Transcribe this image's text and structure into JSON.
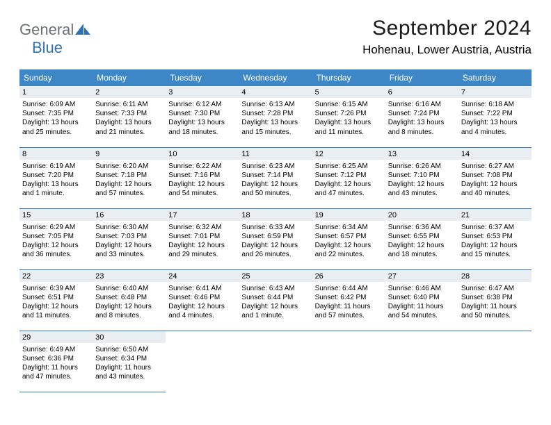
{
  "logo": {
    "part1": "General",
    "part2": "Blue"
  },
  "title": "September 2024",
  "location": "Hohenau, Lower Austria, Austria",
  "header_bg": "#3d87c7",
  "daynum_bg": "#e9eef2",
  "border_color": "#2f71b3",
  "days": [
    "Sunday",
    "Monday",
    "Tuesday",
    "Wednesday",
    "Thursday",
    "Friday",
    "Saturday"
  ],
  "weeks": [
    [
      {
        "n": "1",
        "sunrise": "6:09 AM",
        "sunset": "7:35 PM",
        "dayl": "13 hours and 25 minutes."
      },
      {
        "n": "2",
        "sunrise": "6:11 AM",
        "sunset": "7:33 PM",
        "dayl": "13 hours and 21 minutes."
      },
      {
        "n": "3",
        "sunrise": "6:12 AM",
        "sunset": "7:30 PM",
        "dayl": "13 hours and 18 minutes."
      },
      {
        "n": "4",
        "sunrise": "6:13 AM",
        "sunset": "7:28 PM",
        "dayl": "13 hours and 15 minutes."
      },
      {
        "n": "5",
        "sunrise": "6:15 AM",
        "sunset": "7:26 PM",
        "dayl": "13 hours and 11 minutes."
      },
      {
        "n": "6",
        "sunrise": "6:16 AM",
        "sunset": "7:24 PM",
        "dayl": "13 hours and 8 minutes."
      },
      {
        "n": "7",
        "sunrise": "6:18 AM",
        "sunset": "7:22 PM",
        "dayl": "13 hours and 4 minutes."
      }
    ],
    [
      {
        "n": "8",
        "sunrise": "6:19 AM",
        "sunset": "7:20 PM",
        "dayl": "13 hours and 1 minute."
      },
      {
        "n": "9",
        "sunrise": "6:20 AM",
        "sunset": "7:18 PM",
        "dayl": "12 hours and 57 minutes."
      },
      {
        "n": "10",
        "sunrise": "6:22 AM",
        "sunset": "7:16 PM",
        "dayl": "12 hours and 54 minutes."
      },
      {
        "n": "11",
        "sunrise": "6:23 AM",
        "sunset": "7:14 PM",
        "dayl": "12 hours and 50 minutes."
      },
      {
        "n": "12",
        "sunrise": "6:25 AM",
        "sunset": "7:12 PM",
        "dayl": "12 hours and 47 minutes."
      },
      {
        "n": "13",
        "sunrise": "6:26 AM",
        "sunset": "7:10 PM",
        "dayl": "12 hours and 43 minutes."
      },
      {
        "n": "14",
        "sunrise": "6:27 AM",
        "sunset": "7:08 PM",
        "dayl": "12 hours and 40 minutes."
      }
    ],
    [
      {
        "n": "15",
        "sunrise": "6:29 AM",
        "sunset": "7:05 PM",
        "dayl": "12 hours and 36 minutes."
      },
      {
        "n": "16",
        "sunrise": "6:30 AM",
        "sunset": "7:03 PM",
        "dayl": "12 hours and 33 minutes."
      },
      {
        "n": "17",
        "sunrise": "6:32 AM",
        "sunset": "7:01 PM",
        "dayl": "12 hours and 29 minutes."
      },
      {
        "n": "18",
        "sunrise": "6:33 AM",
        "sunset": "6:59 PM",
        "dayl": "12 hours and 26 minutes."
      },
      {
        "n": "19",
        "sunrise": "6:34 AM",
        "sunset": "6:57 PM",
        "dayl": "12 hours and 22 minutes."
      },
      {
        "n": "20",
        "sunrise": "6:36 AM",
        "sunset": "6:55 PM",
        "dayl": "12 hours and 18 minutes."
      },
      {
        "n": "21",
        "sunrise": "6:37 AM",
        "sunset": "6:53 PM",
        "dayl": "12 hours and 15 minutes."
      }
    ],
    [
      {
        "n": "22",
        "sunrise": "6:39 AM",
        "sunset": "6:51 PM",
        "dayl": "12 hours and 11 minutes."
      },
      {
        "n": "23",
        "sunrise": "6:40 AM",
        "sunset": "6:48 PM",
        "dayl": "12 hours and 8 minutes."
      },
      {
        "n": "24",
        "sunrise": "6:41 AM",
        "sunset": "6:46 PM",
        "dayl": "12 hours and 4 minutes."
      },
      {
        "n": "25",
        "sunrise": "6:43 AM",
        "sunset": "6:44 PM",
        "dayl": "12 hours and 1 minute."
      },
      {
        "n": "26",
        "sunrise": "6:44 AM",
        "sunset": "6:42 PM",
        "dayl": "11 hours and 57 minutes."
      },
      {
        "n": "27",
        "sunrise": "6:46 AM",
        "sunset": "6:40 PM",
        "dayl": "11 hours and 54 minutes."
      },
      {
        "n": "28",
        "sunrise": "6:47 AM",
        "sunset": "6:38 PM",
        "dayl": "11 hours and 50 minutes."
      }
    ],
    [
      {
        "n": "29",
        "sunrise": "6:49 AM",
        "sunset": "6:36 PM",
        "dayl": "11 hours and 47 minutes."
      },
      {
        "n": "30",
        "sunrise": "6:50 AM",
        "sunset": "6:34 PM",
        "dayl": "11 hours and 43 minutes."
      },
      null,
      null,
      null,
      null,
      null
    ]
  ],
  "labels": {
    "sunrise": "Sunrise: ",
    "sunset": "Sunset: ",
    "daylight": "Daylight: "
  }
}
